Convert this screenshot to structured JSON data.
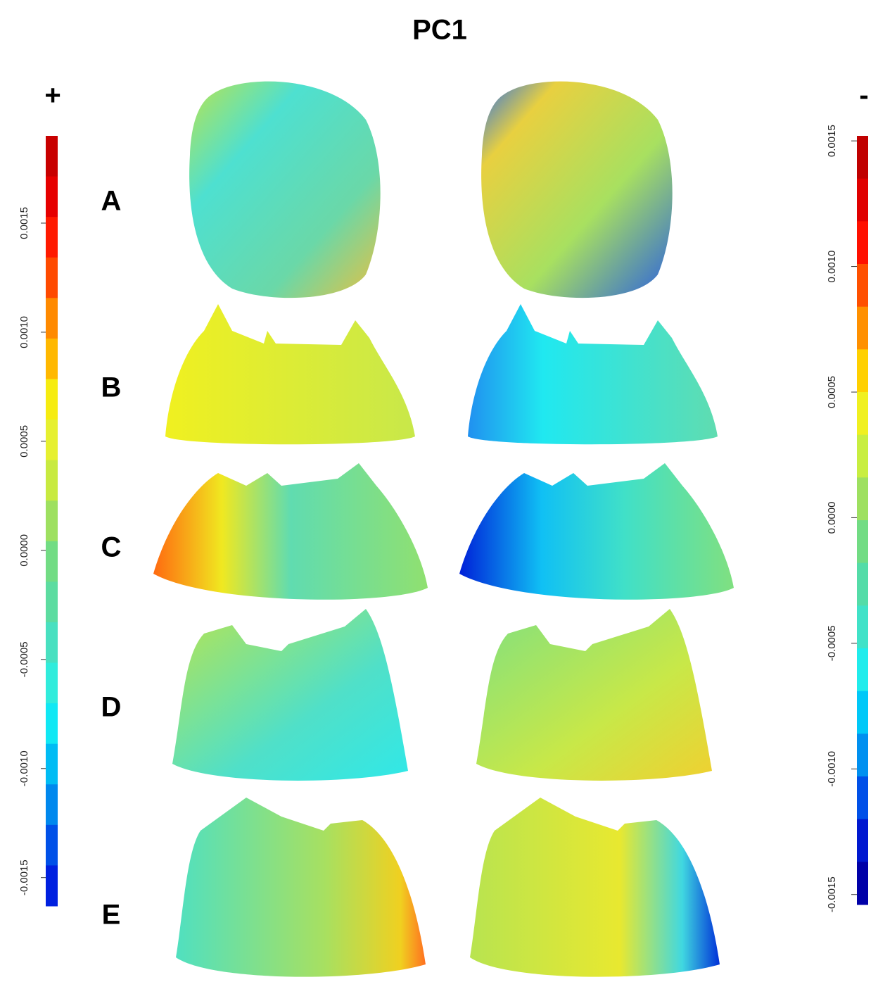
{
  "title": "PC1",
  "scales": [
    {
      "label": "+",
      "range": [
        -0.00163,
        0.0019
      ],
      "ticks": [
        {
          "value": 0.0015,
          "label": "0.0015"
        },
        {
          "value": 0.001,
          "label": "0.0010"
        },
        {
          "value": 0.0005,
          "label": "0.0005"
        },
        {
          "value": 0,
          "label": "0.0000"
        },
        {
          "value": -0.0005,
          "label": "-0.0005"
        },
        {
          "value": -0.001,
          "label": "-0.0010"
        },
        {
          "value": -0.0015,
          "label": "-0.0015"
        }
      ],
      "colors": [
        "#c80000",
        "#e60000",
        "#ff1a00",
        "#ff4a00",
        "#ff8a00",
        "#ffb800",
        "#f6ec10",
        "#e6f030",
        "#c8ea40",
        "#9ee060",
        "#72dc84",
        "#5cdca0",
        "#48e0c0",
        "#30ecdc",
        "#10e8f4",
        "#00bcf4",
        "#0088ee",
        "#0050e8",
        "#0020e0"
      ]
    },
    {
      "label": "-",
      "range": [
        -0.00154,
        0.00152
      ],
      "ticks": [
        {
          "value": 0.0015,
          "label": "0.0015"
        },
        {
          "value": 0.001,
          "label": "0.0010"
        },
        {
          "value": 0.0005,
          "label": "0.0005"
        },
        {
          "value": 0,
          "label": "0.0000"
        },
        {
          "value": -0.0005,
          "label": "-0.0005"
        },
        {
          "value": -0.001,
          "label": "-0.0010"
        },
        {
          "value": -0.0015,
          "label": "-0.0015"
        }
      ],
      "colors": [
        "#c00000",
        "#e00000",
        "#ff1000",
        "#ff5000",
        "#ff9000",
        "#ffd000",
        "#f0f020",
        "#c8ee40",
        "#9ee060",
        "#72dc84",
        "#54dca8",
        "#40e2c8",
        "#20ecec",
        "#00c8f8",
        "#0090f0",
        "#0050e8",
        "#0018d0",
        "#0000a8"
      ]
    }
  ],
  "rows": [
    "A",
    "B",
    "C",
    "D",
    "E"
  ]
}
